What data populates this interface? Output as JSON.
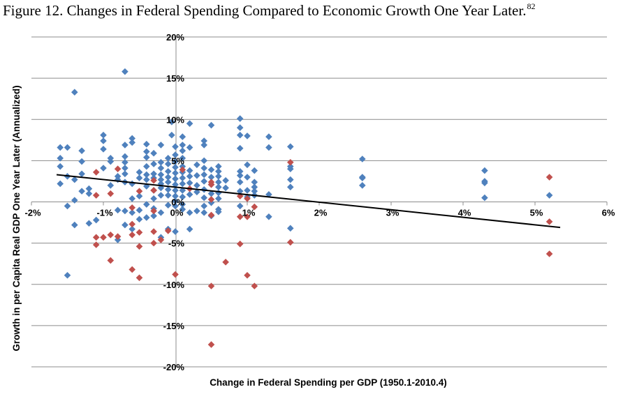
{
  "title": {
    "text": "Figure 12. Changes in Federal Spending Compared to Economic Growth One Year Later.",
    "footnote": "82"
  },
  "chart_data": {
    "type": "scatter",
    "xlabel": "Change in Federal Spending per GDP (1950.1-2010.4)",
    "ylabel": "Growth in per Capita Real GDP One Year Later (Annualized)",
    "xlim": [
      -2,
      6
    ],
    "ylim": [
      -20,
      20
    ],
    "x_ticks": [
      -2,
      -1,
      0,
      1,
      2,
      3,
      4,
      5,
      6
    ],
    "y_ticks": [
      20,
      15,
      10,
      5,
      0,
      -5,
      -10,
      -15,
      -20
    ],
    "x_tick_labels": [
      "-2%",
      "-1%",
      "0%",
      "1%",
      "2%",
      "3%",
      "4%",
      "5%",
      "6%"
    ],
    "y_tick_labels": [
      "20%",
      "15%",
      "10%",
      "5%",
      "0%",
      "-5%",
      "-10%",
      "-15%",
      "-20%"
    ],
    "grid": "horizontal",
    "colors": {
      "blue": "#4f81bd",
      "red": "#c0504d",
      "trend": "#000000",
      "grid": "#8c8c8c"
    },
    "trendline": {
      "x": [
        -1.65,
        5.35
      ],
      "y": [
        3.3,
        -3.1
      ]
    },
    "series": [
      {
        "name": "blue",
        "points": [
          [
            -1.6,
            6.6
          ],
          [
            -1.6,
            5.3
          ],
          [
            -1.6,
            4.3
          ],
          [
            -1.6,
            2.2
          ],
          [
            -1.5,
            6.6
          ],
          [
            -1.5,
            3.1
          ],
          [
            -1.5,
            -0.5
          ],
          [
            -1.5,
            -8.9
          ],
          [
            -1.4,
            13.3
          ],
          [
            -1.4,
            2.7
          ],
          [
            -1.4,
            0.2
          ],
          [
            -1.4,
            -2.8
          ],
          [
            -1.3,
            6.2
          ],
          [
            -1.3,
            4.9
          ],
          [
            -1.3,
            3.4
          ],
          [
            -1.3,
            1.3
          ],
          [
            -1.2,
            1.6
          ],
          [
            -1.2,
            1.0
          ],
          [
            -1.2,
            -2.6
          ],
          [
            -1.1,
            -2.2
          ],
          [
            -1.0,
            8.1
          ],
          [
            -1.0,
            7.4
          ],
          [
            -1.0,
            6.4
          ],
          [
            -1.0,
            4.1
          ],
          [
            -0.9,
            5.3
          ],
          [
            -0.9,
            4.9
          ],
          [
            -0.9,
            2.0
          ],
          [
            -0.8,
            3.1
          ],
          [
            -0.8,
            2.7
          ],
          [
            -0.8,
            -1.0
          ],
          [
            -0.8,
            -4.6
          ],
          [
            -0.7,
            15.8
          ],
          [
            -0.7,
            6.9
          ],
          [
            -0.7,
            5.5
          ],
          [
            -0.7,
            4.8
          ],
          [
            -0.7,
            4.1
          ],
          [
            -0.7,
            3.4
          ],
          [
            -0.7,
            2.4
          ],
          [
            -0.7,
            -1.1
          ],
          [
            -0.7,
            -2.8
          ],
          [
            -0.6,
            7.7
          ],
          [
            -0.6,
            7.2
          ],
          [
            -0.6,
            2.2
          ],
          [
            -0.6,
            0.4
          ],
          [
            -0.6,
            -1.3
          ],
          [
            -0.6,
            -3.3
          ],
          [
            -0.5,
            3.6
          ],
          [
            -0.5,
            2.9
          ],
          [
            -0.5,
            0.7
          ],
          [
            -0.5,
            -1.0
          ],
          [
            -0.5,
            -2.1
          ],
          [
            -0.4,
            7.0
          ],
          [
            -0.4,
            6.1
          ],
          [
            -0.4,
            5.4
          ],
          [
            -0.4,
            4.3
          ],
          [
            -0.4,
            3.3
          ],
          [
            -0.4,
            2.7
          ],
          [
            -0.4,
            1.9
          ],
          [
            -0.4,
            -0.3
          ],
          [
            -0.4,
            -1.9
          ],
          [
            -0.3,
            5.9
          ],
          [
            -0.3,
            4.6
          ],
          [
            -0.3,
            3.4
          ],
          [
            -0.3,
            2.9
          ],
          [
            -0.3,
            1.4
          ],
          [
            -0.3,
            0.4
          ],
          [
            -0.3,
            -0.8
          ],
          [
            -0.3,
            -1.7
          ],
          [
            -0.2,
            6.9
          ],
          [
            -0.2,
            4.8
          ],
          [
            -0.2,
            4.1
          ],
          [
            -0.2,
            3.3
          ],
          [
            -0.2,
            2.7
          ],
          [
            -0.2,
            2.2
          ],
          [
            -0.2,
            1.7
          ],
          [
            -0.2,
            0.8
          ],
          [
            -0.2,
            -1.3
          ],
          [
            -0.2,
            -4.3
          ],
          [
            -0.1,
            5.3
          ],
          [
            -0.1,
            4.6
          ],
          [
            -0.1,
            3.7
          ],
          [
            -0.1,
            3.0
          ],
          [
            -0.1,
            2.4
          ],
          [
            -0.1,
            1.5
          ],
          [
            -0.1,
            0.8
          ],
          [
            -0.1,
            -0.4
          ],
          [
            -0.1,
            -3.3
          ],
          [
            -0.05,
            9.7
          ],
          [
            -0.05,
            8.1
          ],
          [
            0.0,
            6.7
          ],
          [
            0.0,
            5.7
          ],
          [
            0.0,
            4.9
          ],
          [
            0.0,
            4.2
          ],
          [
            0.0,
            3.5
          ],
          [
            0.0,
            2.8
          ],
          [
            0.0,
            2.1
          ],
          [
            0.0,
            1.4
          ],
          [
            0.0,
            0.7
          ],
          [
            0.0,
            0.1
          ],
          [
            0.0,
            -0.5
          ],
          [
            0.0,
            -3.6
          ],
          [
            0.1,
            7.9
          ],
          [
            0.1,
            6.9
          ],
          [
            0.1,
            6.2
          ],
          [
            0.1,
            5.3
          ],
          [
            0.1,
            4.3
          ],
          [
            0.1,
            3.6
          ],
          [
            0.1,
            2.9
          ],
          [
            0.1,
            2.2
          ],
          [
            0.1,
            1.4
          ],
          [
            0.1,
            0.6
          ],
          [
            0.1,
            -0.3
          ],
          [
            0.1,
            -0.9
          ],
          [
            0.2,
            9.5
          ],
          [
            0.2,
            6.6
          ],
          [
            0.2,
            3.8
          ],
          [
            0.2,
            3.1
          ],
          [
            0.2,
            2.3
          ],
          [
            0.2,
            0.9
          ],
          [
            0.2,
            -1.3
          ],
          [
            0.2,
            -3.3
          ],
          [
            0.3,
            4.5
          ],
          [
            0.3,
            3.2
          ],
          [
            0.3,
            2.0
          ],
          [
            0.3,
            1.2
          ],
          [
            0.3,
            -1.1
          ],
          [
            0.4,
            7.4
          ],
          [
            0.4,
            6.9
          ],
          [
            0.4,
            5.0
          ],
          [
            0.4,
            4.1
          ],
          [
            0.4,
            3.3
          ],
          [
            0.4,
            2.5
          ],
          [
            0.4,
            1.5
          ],
          [
            0.4,
            0.5
          ],
          [
            0.4,
            -0.5
          ],
          [
            0.4,
            -1.3
          ],
          [
            0.5,
            9.3
          ],
          [
            0.5,
            3.9
          ],
          [
            0.5,
            3.0
          ],
          [
            0.5,
            2.1
          ],
          [
            0.5,
            1.0
          ],
          [
            0.5,
            -0.1
          ],
          [
            0.5,
            -1.7
          ],
          [
            0.6,
            4.3
          ],
          [
            0.6,
            3.7
          ],
          [
            0.6,
            3.1
          ],
          [
            0.6,
            2.4
          ],
          [
            0.6,
            1.8
          ],
          [
            0.6,
            1.1
          ],
          [
            0.6,
            0.4
          ],
          [
            0.6,
            -0.9
          ],
          [
            0.6,
            -1.2
          ],
          [
            0.7,
            2.6
          ],
          [
            0.7,
            1.7
          ],
          [
            0.9,
            10.1
          ],
          [
            0.9,
            9.0
          ],
          [
            0.9,
            8.1
          ],
          [
            0.9,
            6.5
          ],
          [
            0.9,
            3.7
          ],
          [
            0.9,
            3.2
          ],
          [
            0.9,
            2.4
          ],
          [
            0.9,
            1.3
          ],
          [
            0.9,
            -0.5
          ],
          [
            1.0,
            8.0
          ],
          [
            1.0,
            4.5
          ],
          [
            1.0,
            3.0
          ],
          [
            1.0,
            1.4
          ],
          [
            1.0,
            0.6
          ],
          [
            1.1,
            3.8
          ],
          [
            1.1,
            2.4
          ],
          [
            1.1,
            1.8
          ],
          [
            1.1,
            1.3
          ],
          [
            1.1,
            0.8
          ],
          [
            1.3,
            7.9
          ],
          [
            1.3,
            6.6
          ],
          [
            1.3,
            0.9
          ],
          [
            1.3,
            -1.8
          ],
          [
            1.6,
            6.7
          ],
          [
            1.6,
            4.3
          ],
          [
            1.6,
            4.0
          ],
          [
            1.6,
            2.7
          ],
          [
            1.6,
            1.8
          ],
          [
            1.6,
            -3.2
          ],
          [
            2.6,
            5.2
          ],
          [
            2.6,
            3.0
          ],
          [
            2.6,
            2.9
          ],
          [
            2.6,
            2.0
          ],
          [
            4.3,
            3.8
          ],
          [
            4.3,
            2.5
          ],
          [
            4.3,
            2.3
          ],
          [
            4.3,
            0.5
          ],
          [
            5.2,
            0.8
          ]
        ]
      },
      {
        "name": "red",
        "points": [
          [
            -1.1,
            3.6
          ],
          [
            -1.1,
            0.8
          ],
          [
            -1.1,
            -4.3
          ],
          [
            -1.1,
            -5.2
          ],
          [
            -1.0,
            -4.3
          ],
          [
            -0.9,
            1.0
          ],
          [
            -0.9,
            -4.0
          ],
          [
            -0.9,
            -7.1
          ],
          [
            -0.8,
            4.0
          ],
          [
            -0.8,
            -4.2
          ],
          [
            -0.6,
            -0.7
          ],
          [
            -0.6,
            -2.7
          ],
          [
            -0.6,
            -4.0
          ],
          [
            -0.6,
            -8.2
          ],
          [
            -0.5,
            1.3
          ],
          [
            -0.5,
            -3.7
          ],
          [
            -0.5,
            -5.4
          ],
          [
            -0.5,
            -9.2
          ],
          [
            -0.3,
            2.6
          ],
          [
            -0.3,
            1.4
          ],
          [
            -0.3,
            -1.1
          ],
          [
            -0.3,
            -3.6
          ],
          [
            -0.3,
            -5.0
          ],
          [
            -0.2,
            -4.6
          ],
          [
            -0.1,
            -3.5
          ],
          [
            0.0,
            -8.8
          ],
          [
            0.1,
            3.9
          ],
          [
            0.2,
            1.6
          ],
          [
            0.5,
            2.4
          ],
          [
            0.5,
            2.1
          ],
          [
            0.5,
            0.3
          ],
          [
            0.5,
            -1.6
          ],
          [
            0.5,
            -10.2
          ],
          [
            0.5,
            -17.3
          ],
          [
            0.7,
            -7.3
          ],
          [
            0.9,
            0.7
          ],
          [
            0.9,
            -1.8
          ],
          [
            0.9,
            -5.1
          ],
          [
            1.0,
            0.4
          ],
          [
            1.0,
            -1.8
          ],
          [
            1.0,
            -8.9
          ],
          [
            1.1,
            -0.6
          ],
          [
            1.1,
            -10.2
          ],
          [
            1.6,
            4.8
          ],
          [
            1.6,
            -4.9
          ],
          [
            5.2,
            3.0
          ],
          [
            5.2,
            -2.4
          ],
          [
            5.2,
            -6.3
          ]
        ]
      }
    ]
  }
}
